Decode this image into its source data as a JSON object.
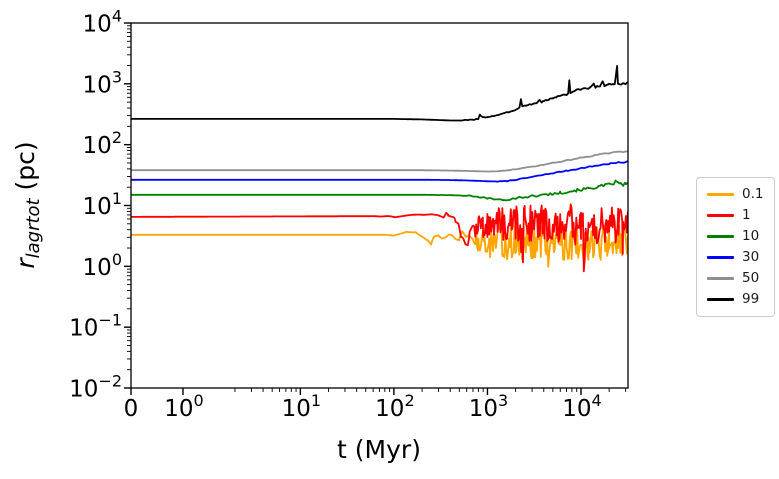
{
  "figure": {
    "background": "#ffffff"
  },
  "chart_data": {
    "type": "line",
    "title": "",
    "xlabel": "t (Myr)",
    "ylabel": "r_lagrtot (pc)",
    "ylabel_parts": {
      "main": "r",
      "sub": "lagrtot",
      "rest": " (pc)"
    },
    "x_axis": {
      "scale": "symlog",
      "linthresh": 2,
      "linscale": 1,
      "major_ticks": [
        0,
        1,
        10,
        100,
        1000,
        10000
      ],
      "range": [
        0,
        32000
      ],
      "tick_style": "power-of-10"
    },
    "y_axis": {
      "scale": "log",
      "major_ticks_exp": [
        4,
        3,
        2,
        1,
        0,
        -1,
        -2
      ],
      "range": [
        0.01,
        10000
      ]
    },
    "legend": {
      "position": "right-outside"
    },
    "axis_color": "#000000",
    "series": [
      {
        "name": "0.1",
        "color": "#ffa500",
        "seed": 13,
        "width": 1.8,
        "points": [
          [
            0,
            3.3
          ],
          [
            100,
            3.3
          ],
          [
            140,
            3.6
          ],
          [
            170,
            3.9
          ],
          [
            200,
            3.3
          ],
          [
            230,
            2.7
          ],
          [
            250,
            2.15
          ],
          [
            270,
            2.9
          ],
          [
            300,
            3.2
          ],
          [
            400,
            3.1
          ],
          [
            500,
            3.0
          ],
          [
            600,
            2.9
          ],
          [
            700,
            2.8
          ],
          [
            800,
            2.7
          ],
          [
            1000,
            2.6
          ],
          [
            1500,
            2.5
          ],
          [
            2000,
            2.45
          ],
          [
            3000,
            2.5
          ],
          [
            4000,
            2.4
          ],
          [
            5000,
            2.5
          ],
          [
            7000,
            2.45
          ],
          [
            9000,
            2.5
          ],
          [
            12000,
            2.45
          ],
          [
            16000,
            2.5
          ],
          [
            20000,
            2.45
          ],
          [
            25000,
            2.5
          ],
          [
            32000,
            2.5
          ]
        ],
        "noise": [
          {
            "t0": 80,
            "t1": 300,
            "a0": 0.02,
            "a1": 0.05,
            "hold": 8
          },
          {
            "t0": 300,
            "t1": 700,
            "a0": 0.05,
            "a1": 0.14,
            "hold": 4
          },
          {
            "t0": 700,
            "t1": 1500,
            "a0": 0.16,
            "a1": 0.26,
            "hold": 1,
            "sp": 0.05,
            "sa": -0.5
          },
          {
            "t0": 1500,
            "t1": 32000,
            "a0": 0.28,
            "a1": 0.3,
            "hold": 1,
            "sp": 0.07,
            "sa": -0.55
          }
        ]
      },
      {
        "name": "1",
        "color": "#ff0000",
        "seed": 47,
        "width": 1.8,
        "points": [
          [
            0,
            6.5
          ],
          [
            100,
            6.7
          ],
          [
            200,
            6.9
          ],
          [
            300,
            7.0
          ],
          [
            380,
            6.8
          ],
          [
            450,
            5.8
          ],
          [
            520,
            3.6
          ],
          [
            580,
            2.5
          ],
          [
            640,
            2.9
          ],
          [
            700,
            4.0
          ],
          [
            800,
            4.6
          ],
          [
            900,
            4.2
          ],
          [
            1000,
            4.8
          ],
          [
            1200,
            5.2
          ],
          [
            1500,
            5.0
          ],
          [
            2000,
            5.3
          ],
          [
            2500,
            5.0
          ],
          [
            3000,
            5.2
          ],
          [
            4000,
            5.0
          ],
          [
            5000,
            5.3
          ],
          [
            6000,
            5.0
          ],
          [
            8000,
            5.2
          ],
          [
            10000,
            5.0
          ],
          [
            12000,
            5.3
          ],
          [
            15000,
            5.0
          ],
          [
            18000,
            5.2
          ],
          [
            21000,
            5.0
          ],
          [
            25000,
            5.2
          ],
          [
            28000,
            5.0
          ],
          [
            32000,
            5.3
          ]
        ],
        "noise": [
          {
            "t0": 60,
            "t1": 300,
            "a0": 0.012,
            "a1": 0.035,
            "hold": 8
          },
          {
            "t0": 300,
            "t1": 700,
            "a0": 0.04,
            "a1": 0.1,
            "hold": 3
          },
          {
            "t0": 700,
            "t1": 1500,
            "a0": 0.14,
            "a1": 0.28,
            "hold": 1,
            "sp": 0.03,
            "sa": -0.45
          },
          {
            "t0": 1500,
            "t1": 32000,
            "a0": 0.3,
            "a1": 0.33,
            "hold": 1,
            "sp": 0.045,
            "sa": -0.5
          }
        ]
      },
      {
        "name": "10",
        "color": "#008000",
        "seed": 101,
        "width": 1.8,
        "points": [
          [
            0,
            15
          ],
          [
            200,
            15
          ],
          [
            400,
            14.8
          ],
          [
            600,
            14.5
          ],
          [
            800,
            13.8
          ],
          [
            1000,
            13.2
          ],
          [
            1200,
            12.6
          ],
          [
            1400,
            12.3
          ],
          [
            1600,
            12.6
          ],
          [
            1800,
            12.9
          ],
          [
            2000,
            13.2
          ],
          [
            2500,
            13.8
          ],
          [
            3000,
            14.2
          ],
          [
            4000,
            15.0
          ],
          [
            5000,
            15.6
          ],
          [
            6000,
            16.2
          ],
          [
            7000,
            16.8
          ],
          [
            8000,
            17.3
          ],
          [
            9000,
            17.8
          ],
          [
            10000,
            18.2
          ],
          [
            12000,
            19.0
          ],
          [
            14000,
            19.8
          ],
          [
            16000,
            20.6
          ],
          [
            18000,
            21.3
          ],
          [
            20000,
            22.0
          ],
          [
            22000,
            23.0
          ],
          [
            23500,
            24.5
          ],
          [
            25000,
            23.5
          ],
          [
            26500,
            22.5
          ],
          [
            28000,
            22.0
          ],
          [
            30000,
            22.5
          ],
          [
            32000,
            23.5
          ]
        ],
        "noise": [
          {
            "t0": 500,
            "t1": 2000,
            "a0": 0.008,
            "a1": 0.018,
            "hold": 4
          },
          {
            "t0": 2000,
            "t1": 32000,
            "a0": 0.018,
            "a1": 0.028,
            "hold": 2
          }
        ]
      },
      {
        "name": "30",
        "color": "#0000ff",
        "seed": 7,
        "width": 1.8,
        "points": [
          [
            0,
            26.5
          ],
          [
            200,
            26.5
          ],
          [
            400,
            26.2
          ],
          [
            600,
            25.8
          ],
          [
            800,
            25.4
          ],
          [
            1000,
            25.0
          ],
          [
            1300,
            24.8
          ],
          [
            1600,
            25.2
          ],
          [
            2000,
            26.5
          ],
          [
            2500,
            28.0
          ],
          [
            3000,
            29.5
          ],
          [
            4000,
            32.0
          ],
          [
            5000,
            34.0
          ],
          [
            6000,
            35.8
          ],
          [
            7000,
            37.2
          ],
          [
            8000,
            38.5
          ],
          [
            9000,
            39.8
          ],
          [
            10000,
            41.0
          ],
          [
            12000,
            43.0
          ],
          [
            14000,
            44.8
          ],
          [
            16000,
            46.2
          ],
          [
            18000,
            47.5
          ],
          [
            20000,
            48.5
          ],
          [
            23000,
            49.8
          ],
          [
            26000,
            50.8
          ],
          [
            29000,
            51.5
          ],
          [
            32000,
            52.5
          ]
        ],
        "noise": [
          {
            "t0": 1200,
            "t1": 32000,
            "a0": 0.005,
            "a1": 0.011,
            "hold": 3
          }
        ]
      },
      {
        "name": "50",
        "color": "#8f8f8f",
        "seed": 29,
        "width": 1.8,
        "points": [
          [
            0,
            38
          ],
          [
            200,
            38
          ],
          [
            400,
            37.5
          ],
          [
            600,
            37.0
          ],
          [
            800,
            36.5
          ],
          [
            1000,
            36.2
          ],
          [
            1300,
            36.5
          ],
          [
            1600,
            37.5
          ],
          [
            2000,
            39.5
          ],
          [
            2500,
            41.5
          ],
          [
            3000,
            43.5
          ],
          [
            4000,
            47.0
          ],
          [
            5000,
            50.0
          ],
          [
            6000,
            52.5
          ],
          [
            7000,
            55.0
          ],
          [
            8000,
            57.0
          ],
          [
            9000,
            59.0
          ],
          [
            10000,
            61.0
          ],
          [
            12000,
            64.0
          ],
          [
            14000,
            67.0
          ],
          [
            16000,
            69.0
          ],
          [
            18000,
            71.0
          ],
          [
            20000,
            72.5
          ],
          [
            23000,
            74.5
          ],
          [
            26000,
            76.0
          ],
          [
            29000,
            77.0
          ],
          [
            32000,
            79.0
          ]
        ],
        "noise": [
          {
            "t0": 1200,
            "t1": 32000,
            "a0": 0.004,
            "a1": 0.01,
            "hold": 3
          }
        ]
      },
      {
        "name": "99",
        "color": "#000000",
        "seed": 3,
        "width": 1.8,
        "points": [
          [
            0,
            265
          ],
          [
            100,
            265
          ],
          [
            200,
            260
          ],
          [
            300,
            254
          ],
          [
            400,
            250
          ],
          [
            500,
            250
          ],
          [
            600,
            253
          ],
          [
            700,
            258
          ],
          [
            800,
            266
          ],
          [
            830,
            310
          ],
          [
            860,
            290
          ],
          [
            900,
            280
          ],
          [
            1000,
            285
          ],
          [
            1200,
            300
          ],
          [
            1500,
            325
          ],
          [
            1800,
            355
          ],
          [
            2000,
            375
          ],
          [
            2200,
            410
          ],
          [
            2280,
            555
          ],
          [
            2360,
            430
          ],
          [
            2600,
            440
          ],
          [
            3000,
            465
          ],
          [
            3400,
            490
          ],
          [
            3600,
            540
          ],
          [
            3800,
            500
          ],
          [
            4000,
            520
          ],
          [
            4500,
            550
          ],
          [
            5000,
            585
          ],
          [
            5500,
            610
          ],
          [
            6000,
            640
          ],
          [
            6500,
            665
          ],
          [
            7000,
            660
          ],
          [
            7300,
            690
          ],
          [
            7500,
            1150
          ],
          [
            7700,
            710
          ],
          [
            8000,
            730
          ],
          [
            8500,
            760
          ],
          [
            9000,
            790
          ],
          [
            9500,
            820
          ],
          [
            10000,
            800
          ],
          [
            11000,
            860
          ],
          [
            12000,
            830
          ],
          [
            13000,
            900
          ],
          [
            13700,
            1020
          ],
          [
            14300,
            880
          ],
          [
            15000,
            930
          ],
          [
            16000,
            900
          ],
          [
            17000,
            1080
          ],
          [
            17800,
            930
          ],
          [
            19000,
            960
          ],
          [
            20000,
            1000
          ],
          [
            21000,
            960
          ],
          [
            22000,
            1000
          ],
          [
            23000,
            980
          ],
          [
            24300,
            1950
          ],
          [
            24800,
            1000
          ],
          [
            26000,
            980
          ],
          [
            28000,
            1020
          ],
          [
            30000,
            990
          ],
          [
            32000,
            1080
          ]
        ],
        "noise": [
          {
            "t0": 500,
            "t1": 32000,
            "a0": 0.007,
            "a1": 0.011,
            "hold": 2
          }
        ]
      }
    ]
  }
}
